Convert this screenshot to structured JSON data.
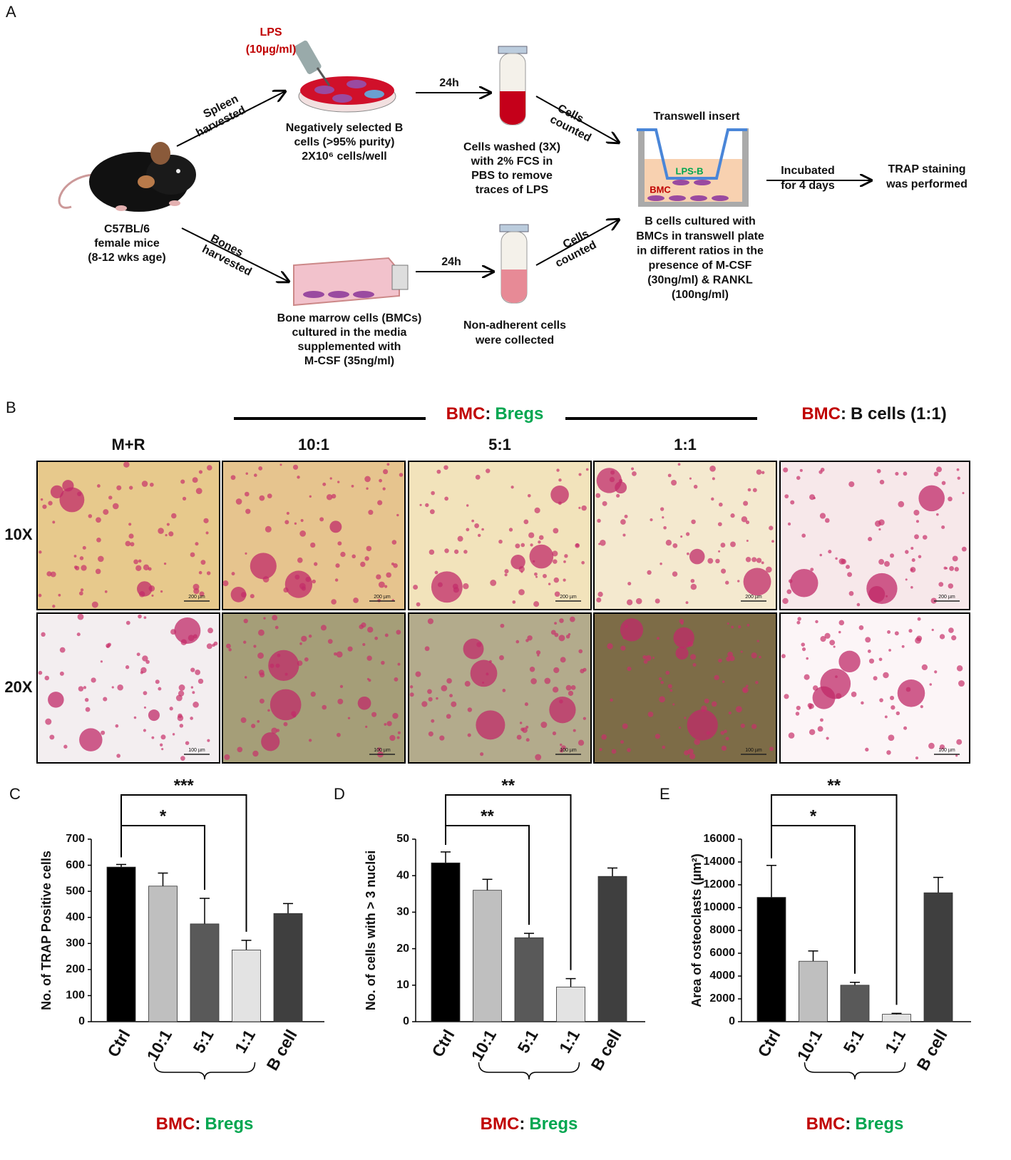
{
  "diagram": {
    "panel_label": "A",
    "lps": [
      "LPS",
      "(10µg/ml)"
    ],
    "b_cells": [
      "Negatively selected B",
      "cells (>95% purity)",
      "2X10⁶ cells/well"
    ],
    "mouse": [
      "C57BL/6",
      "female mice",
      "(8-12 wks age)"
    ],
    "spleen_arrow": [
      "Spleen",
      "harvested"
    ],
    "bones_arrow": [
      "Bones",
      "harvested"
    ],
    "bmc_culture": [
      "Bone marrow cells (BMCs)",
      "cultured in the media",
      "supplemented with",
      "M-CSF (35ng/ml)"
    ],
    "time_upper": "24h",
    "time_lower": "24h",
    "washed": [
      "Cells washed (3X)",
      "with 2% FCS in",
      "PBS to remove",
      "traces of LPS"
    ],
    "collected": [
      "Non-adherent cells",
      "were collected"
    ],
    "counted_upper": [
      "Cells",
      "counted"
    ],
    "counted_lower": [
      "Cells",
      "counted"
    ],
    "transwell": {
      "title": "Transwell insert",
      "upper": "LPS-B",
      "lower": "BMC"
    },
    "coculture": [
      "B cells cultured with",
      "BMCs in transwell plate",
      "in different ratios in the",
      "presence of M-CSF",
      "(30ng/ml) & RANKL",
      "(100ng/ml)"
    ],
    "incubation": [
      "Incubated",
      "for 4 days"
    ],
    "result": [
      "TRAP staining",
      "was performed"
    ]
  },
  "micrographs": {
    "panel_label": "B",
    "group_label": {
      "left": "BMC",
      "sep": ":",
      "right": "Bregs"
    },
    "control_label": {
      "left": "BMC",
      "sep": ":",
      "right": "B cells (1:1)"
    },
    "columns": [
      "M+R",
      "10:1",
      "5:1",
      "1:1"
    ],
    "rows": [
      "10X",
      "20X"
    ],
    "scale_bars": [
      "200 µm",
      "100 µm"
    ]
  },
  "chart_data": [
    {
      "type": "bar",
      "panel_label": "C",
      "ylabel": "No. of TRAP Positive cells",
      "categories": [
        "Ctrl",
        "10:1",
        "5:1",
        "1:1",
        "B cell"
      ],
      "values": [
        593,
        520,
        375,
        275,
        415
      ],
      "errors": [
        10,
        50,
        98,
        37,
        38
      ],
      "colors": [
        "#000000",
        "#bfbfbf",
        "#595959",
        "#e3e3e3",
        "#3f3f3f"
      ],
      "ylim": [
        0,
        700
      ],
      "yticks": [
        0,
        100,
        200,
        300,
        400,
        500,
        600,
        700
      ],
      "significance": [
        "*",
        "***"
      ],
      "group_label": {
        "left": "BMC",
        "sep": ":",
        "right": "Bregs"
      }
    },
    {
      "type": "bar",
      "panel_label": "D",
      "ylabel": "No. of cells with > 3 nuclei",
      "categories": [
        "Ctrl",
        "10:1",
        "5:1",
        "1:1",
        "B cell"
      ],
      "values": [
        43.5,
        36,
        23,
        9.5,
        39.8
      ],
      "errors": [
        3,
        3,
        1.2,
        2.3,
        2.3
      ],
      "colors": [
        "#000000",
        "#bfbfbf",
        "#595959",
        "#e3e3e3",
        "#3f3f3f"
      ],
      "ylim": [
        0,
        50
      ],
      "yticks": [
        0,
        10,
        20,
        30,
        40,
        50
      ],
      "significance": [
        "**",
        "**"
      ],
      "group_label": {
        "left": "BMC",
        "sep": ":",
        "right": "Bregs"
      }
    },
    {
      "type": "bar",
      "panel_label": "E",
      "ylabel": "Area of osteoclasts (µm²)",
      "categories": [
        "Ctrl",
        "10:1",
        "5:1",
        "1:1",
        "B cell"
      ],
      "values": [
        10900,
        5300,
        3200,
        650,
        11300
      ],
      "errors": [
        2800,
        900,
        250,
        80,
        1350
      ],
      "colors": [
        "#000000",
        "#bfbfbf",
        "#595959",
        "#e3e3e3",
        "#3f3f3f"
      ],
      "ylim": [
        0,
        16000
      ],
      "yticks": [
        0,
        2000,
        4000,
        6000,
        8000,
        10000,
        12000,
        14000,
        16000
      ],
      "significance": [
        "*",
        "**"
      ],
      "group_label": {
        "left": "BMC",
        "sep": ":",
        "right": "Bregs"
      }
    }
  ]
}
